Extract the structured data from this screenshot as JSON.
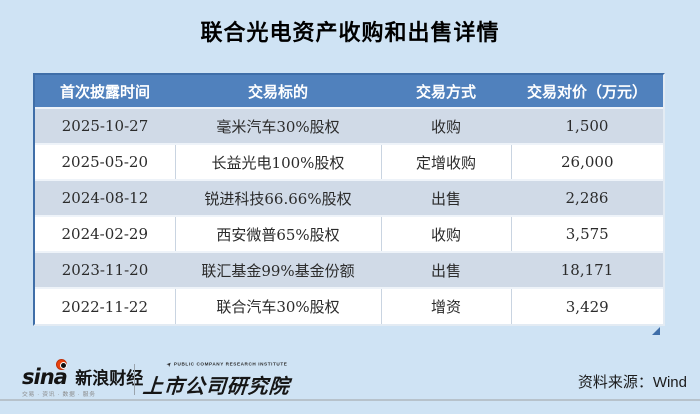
{
  "title": "联合光电资产收购和出售详情",
  "chart_data": {
    "type": "table",
    "title": "联合光电资产收购和出售详情",
    "columns": [
      "首次披露时间",
      "交易标的",
      "交易方式",
      "交易对价（万元）"
    ],
    "rows": [
      [
        "2025-10-27",
        "毫米汽车30%股权",
        "收购",
        "1,500"
      ],
      [
        "2025-05-20",
        "长益光电100%股权",
        "定增收购",
        "26,000"
      ],
      [
        "2024-08-12",
        "锐进科技66.66%股权",
        "出售",
        "2,286"
      ],
      [
        "2024-02-29",
        "西安微普65%股权",
        "收购",
        "3,575"
      ],
      [
        "2023-11-20",
        "联汇基金99%基金份额",
        "出售",
        "18,171"
      ],
      [
        "2022-11-22",
        "联合汽车30%股权",
        "增资",
        "3,429"
      ]
    ],
    "legend_position": "none",
    "grid": true
  },
  "footer": {
    "sina_logo": "sina",
    "sina_brand": "新浪财经",
    "sina_tagline": "交易 · 资讯 · 数据 · 服务",
    "institute_en": "PUBLIC COMPANY RESEARCH INSTITUTE",
    "institute_cn": "上市公司研究院",
    "source": "资料来源：Wind"
  },
  "colors": {
    "page_bg": "#cfe3f4",
    "header_bg": "#5081bd",
    "header_text": "#ffffff",
    "row_alt_bg": "#d0dae7",
    "row_bg": "#ffffff",
    "body_text": "#2b2b2b",
    "table_border": "#3f6ea8",
    "footer_line": "#b7c2cb",
    "sina_red": "#e8430f"
  }
}
